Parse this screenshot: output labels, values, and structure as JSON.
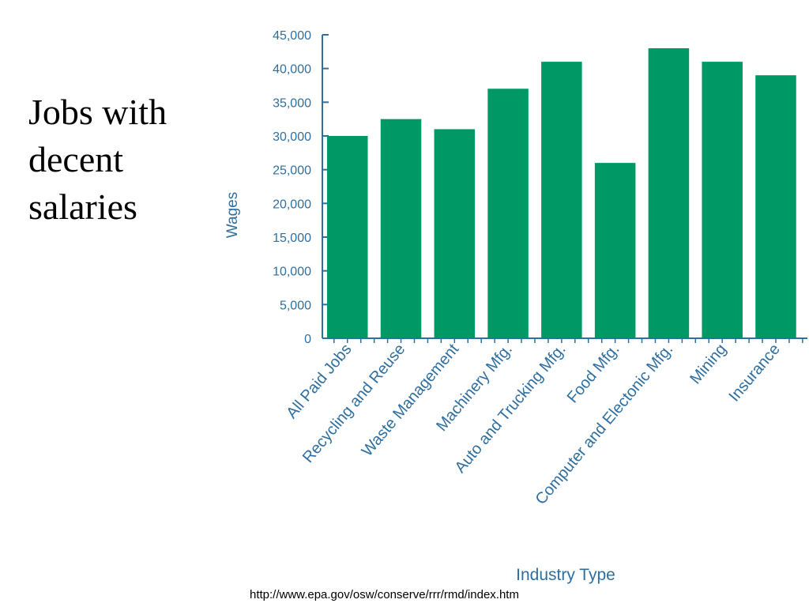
{
  "slide": {
    "title_lines": [
      "Jobs with",
      "decent",
      "salaries"
    ],
    "source_url": "http://www.epa.gov/osw/conserve/rrr/rmd/index.htm"
  },
  "colors": {
    "bar": "#009966",
    "axis": "#2f6f9f",
    "label": "#2f6f9f"
  },
  "chart_data": {
    "type": "bar",
    "title": "",
    "xlabel": "Industry Type",
    "ylabel": "Wages",
    "ylim": [
      0,
      45000
    ],
    "yticks": [
      0,
      5000,
      10000,
      15000,
      20000,
      25000,
      30000,
      35000,
      40000,
      45000
    ],
    "ytick_labels": [
      "0",
      "5,000",
      "10,000",
      "15,000",
      "20,000",
      "25,000",
      "30,000",
      "35,000",
      "40,000",
      "45,000"
    ],
    "grid": false,
    "categories": [
      "All Paid Jobs",
      "Recycling and  Reuse",
      "Waste Management",
      "Machinery Mfg.",
      "Auto and Trucking Mfg.",
      "Food Mfg.",
      "Computer and Electonic Mfg.",
      "Mining",
      "Insurance"
    ],
    "values": [
      30000,
      32500,
      31000,
      37000,
      41000,
      26000,
      43000,
      41000,
      39000
    ]
  }
}
